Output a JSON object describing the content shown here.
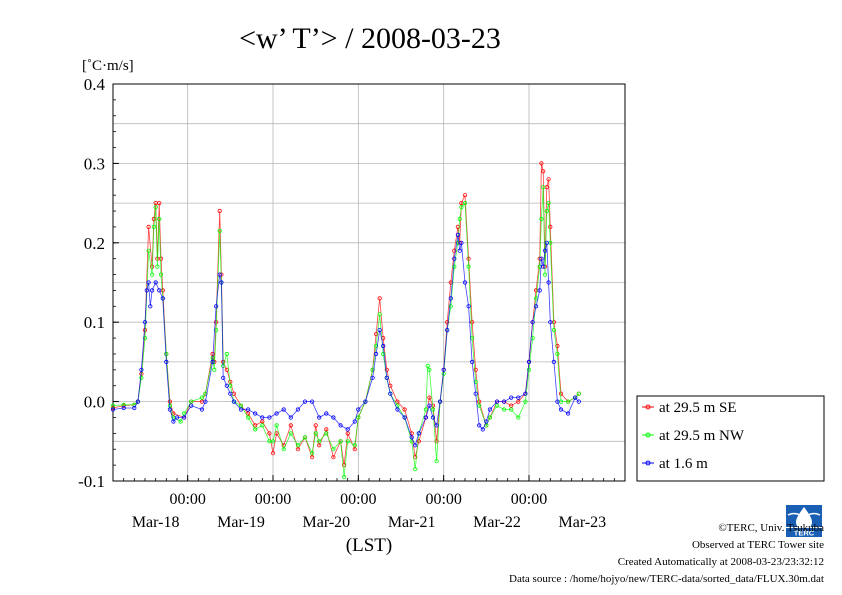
{
  "title": "<w’ T’> / 2008-03-23",
  "unit_label": "[˚C·m/s]",
  "x_axis_label": "(LST)",
  "chart_data": {
    "type": "line",
    "title": "<w’ T’> / 2008-03-23",
    "ylabel": "[˚C·m/s]",
    "xlabel": "(LST)",
    "ylim": [
      -0.1,
      0.4
    ],
    "xlim_hours": [
      0,
      144
    ],
    "y_ticks": [
      "0.4",
      "0.3",
      "0.2",
      "0.1",
      "0.0",
      "-0.1"
    ],
    "x_time_ticks": [
      {
        "hour": 21,
        "label": "00:00"
      },
      {
        "hour": 45,
        "label": "00:00"
      },
      {
        "hour": 69,
        "label": "00:00"
      },
      {
        "hour": 93,
        "label": "00:00"
      },
      {
        "hour": 117,
        "label": "00:00"
      }
    ],
    "x_date_labels": [
      {
        "hour": 12,
        "label": "Mar-18"
      },
      {
        "hour": 36,
        "label": "Mar-19"
      },
      {
        "hour": 60,
        "label": "Mar-20"
      },
      {
        "hour": 84,
        "label": "Mar-21"
      },
      {
        "hour": 108,
        "label": "Mar-22"
      },
      {
        "hour": 132,
        "label": "Mar-23"
      }
    ],
    "grid": true,
    "legend_position": "right",
    "series": [
      {
        "name": "at 29.5 m SE",
        "color": "#ff0000",
        "points": [
          [
            0,
            -0.008
          ],
          [
            3,
            -0.005
          ],
          [
            6,
            -0.004
          ],
          [
            7,
            0.0
          ],
          [
            8,
            0.035
          ],
          [
            9,
            0.09
          ],
          [
            10,
            0.22
          ],
          [
            11,
            0.17
          ],
          [
            11.5,
            0.23
          ],
          [
            12,
            0.25
          ],
          [
            12.5,
            0.18
          ],
          [
            13,
            0.25
          ],
          [
            13.5,
            0.18
          ],
          [
            14,
            0.14
          ],
          [
            15,
            0.06
          ],
          [
            16,
            0.0
          ],
          [
            17,
            -0.015
          ],
          [
            20,
            -0.02
          ],
          [
            22,
            0.0
          ],
          [
            25,
            0.0
          ],
          [
            26,
            0.01
          ],
          [
            28,
            0.06
          ],
          [
            28.5,
            0.05
          ],
          [
            29,
            0.1
          ],
          [
            30,
            0.24
          ],
          [
            30.5,
            0.16
          ],
          [
            31,
            0.05
          ],
          [
            32,
            0.04
          ],
          [
            33,
            0.025
          ],
          [
            34,
            0.01
          ],
          [
            36,
            -0.005
          ],
          [
            38,
            -0.015
          ],
          [
            40,
            -0.03
          ],
          [
            42,
            -0.025
          ],
          [
            44,
            -0.04
          ],
          [
            45,
            -0.065
          ],
          [
            46,
            -0.04
          ],
          [
            48,
            -0.055
          ],
          [
            50,
            -0.03
          ],
          [
            52,
            -0.06
          ],
          [
            54,
            -0.045
          ],
          [
            56,
            -0.07
          ],
          [
            57,
            -0.03
          ],
          [
            58,
            -0.055
          ],
          [
            60,
            -0.035
          ],
          [
            62,
            -0.07
          ],
          [
            64,
            -0.05
          ],
          [
            65,
            -0.08
          ],
          [
            66,
            -0.04
          ],
          [
            68,
            -0.06
          ],
          [
            69,
            -0.02
          ],
          [
            71,
            0.0
          ],
          [
            73,
            0.04
          ],
          [
            74,
            0.085
          ],
          [
            75,
            0.13
          ],
          [
            76,
            0.08
          ],
          [
            77,
            0.04
          ],
          [
            78,
            0.02
          ],
          [
            80,
            0.0
          ],
          [
            82,
            -0.01
          ],
          [
            84,
            -0.04
          ],
          [
            85,
            -0.07
          ],
          [
            86,
            -0.05
          ],
          [
            88,
            -0.02
          ],
          [
            89,
            0.005
          ],
          [
            90,
            -0.005
          ],
          [
            91,
            -0.05
          ],
          [
            92,
            0.0
          ],
          [
            93,
            0.04
          ],
          [
            94,
            0.1
          ],
          [
            95,
            0.15
          ],
          [
            96,
            0.19
          ],
          [
            97,
            0.22
          ],
          [
            97.5,
            0.2
          ],
          [
            98,
            0.25
          ],
          [
            99,
            0.26
          ],
          [
            100,
            0.18
          ],
          [
            101,
            0.1
          ],
          [
            102,
            0.04
          ],
          [
            103,
            0.0
          ],
          [
            105,
            -0.03
          ],
          [
            106,
            -0.02
          ],
          [
            108,
            0.0
          ],
          [
            110,
            0.0
          ],
          [
            112,
            -0.005
          ],
          [
            114,
            0.0
          ],
          [
            116,
            0.01
          ],
          [
            117,
            0.05
          ],
          [
            118,
            0.1
          ],
          [
            119,
            0.14
          ],
          [
            120,
            0.18
          ],
          [
            120.5,
            0.3
          ],
          [
            121,
            0.29
          ],
          [
            121.5,
            0.17
          ],
          [
            122,
            0.27
          ],
          [
            122.5,
            0.28
          ],
          [
            123,
            0.22
          ],
          [
            124,
            0.1
          ],
          [
            125,
            0.07
          ],
          [
            126,
            0.01
          ],
          [
            128,
            0.0
          ],
          [
            130,
            0.005
          ],
          [
            131,
            0.01
          ]
        ]
      },
      {
        "name": "at 29.5 m NW",
        "color": "#00ff00",
        "points": [
          [
            0,
            -0.005
          ],
          [
            3,
            -0.004
          ],
          [
            6,
            -0.004
          ],
          [
            7,
            0.0
          ],
          [
            8,
            0.03
          ],
          [
            9,
            0.08
          ],
          [
            10,
            0.19
          ],
          [
            11,
            0.16
          ],
          [
            11.5,
            0.22
          ],
          [
            12,
            0.245
          ],
          [
            12.5,
            0.17
          ],
          [
            13,
            0.23
          ],
          [
            13.5,
            0.16
          ],
          [
            14,
            0.13
          ],
          [
            15,
            0.06
          ],
          [
            16,
            -0.005
          ],
          [
            17,
            -0.02
          ],
          [
            19,
            -0.025
          ],
          [
            20,
            -0.015
          ],
          [
            22,
            0.0
          ],
          [
            25,
            0.005
          ],
          [
            26,
            0.01
          ],
          [
            28,
            0.055
          ],
          [
            28.5,
            0.04
          ],
          [
            29,
            0.09
          ],
          [
            30,
            0.215
          ],
          [
            30.5,
            0.15
          ],
          [
            31,
            0.045
          ],
          [
            32,
            0.06
          ],
          [
            33,
            0.02
          ],
          [
            34,
            0.0
          ],
          [
            36,
            -0.005
          ],
          [
            38,
            -0.02
          ],
          [
            40,
            -0.035
          ],
          [
            42,
            -0.03
          ],
          [
            44,
            -0.05
          ],
          [
            45,
            -0.05
          ],
          [
            46,
            -0.03
          ],
          [
            48,
            -0.06
          ],
          [
            50,
            -0.04
          ],
          [
            52,
            -0.055
          ],
          [
            54,
            -0.045
          ],
          [
            56,
            -0.065
          ],
          [
            57,
            -0.04
          ],
          [
            58,
            -0.05
          ],
          [
            60,
            -0.04
          ],
          [
            62,
            -0.06
          ],
          [
            64,
            -0.05
          ],
          [
            65,
            -0.095
          ],
          [
            66,
            -0.05
          ],
          [
            68,
            -0.055
          ],
          [
            69,
            -0.02
          ],
          [
            71,
            0.0
          ],
          [
            73,
            0.04
          ],
          [
            74,
            0.07
          ],
          [
            75,
            0.11
          ],
          [
            76,
            0.06
          ],
          [
            77,
            0.03
          ],
          [
            78,
            0.01
          ],
          [
            80,
            -0.005
          ],
          [
            82,
            -0.02
          ],
          [
            84,
            -0.05
          ],
          [
            85,
            -0.085
          ],
          [
            86,
            -0.04
          ],
          [
            88,
            -0.01
          ],
          [
            88.5,
            0.045
          ],
          [
            89,
            0.04
          ],
          [
            90,
            -0.01
          ],
          [
            91,
            -0.075
          ],
          [
            92,
            0.0
          ],
          [
            93,
            0.035
          ],
          [
            94,
            0.09
          ],
          [
            95,
            0.12
          ],
          [
            96,
            0.17
          ],
          [
            97,
            0.2
          ],
          [
            97.5,
            0.23
          ],
          [
            98,
            0.245
          ],
          [
            99,
            0.25
          ],
          [
            100,
            0.17
          ],
          [
            101,
            0.08
          ],
          [
            102,
            0.025
          ],
          [
            103,
            -0.005
          ],
          [
            105,
            -0.03
          ],
          [
            106,
            -0.02
          ],
          [
            108,
            -0.005
          ],
          [
            110,
            -0.01
          ],
          [
            112,
            -0.01
          ],
          [
            114,
            -0.02
          ],
          [
            116,
            0.0
          ],
          [
            117,
            0.04
          ],
          [
            118,
            0.08
          ],
          [
            119,
            0.13
          ],
          [
            120,
            0.17
          ],
          [
            120.5,
            0.23
          ],
          [
            121,
            0.27
          ],
          [
            121.5,
            0.16
          ],
          [
            122,
            0.24
          ],
          [
            122.5,
            0.25
          ],
          [
            123,
            0.2
          ],
          [
            124,
            0.09
          ],
          [
            125,
            0.06
          ],
          [
            126,
            0.0
          ],
          [
            128,
            0.0
          ],
          [
            130,
            0.005
          ],
          [
            131,
            0.01
          ]
        ]
      },
      {
        "name": "at 1.6 m",
        "color": "#0000ff",
        "points": [
          [
            0,
            -0.01
          ],
          [
            3,
            -0.008
          ],
          [
            6,
            -0.008
          ],
          [
            7,
            0.0
          ],
          [
            8,
            0.04
          ],
          [
            9,
            0.1
          ],
          [
            9.5,
            0.14
          ],
          [
            10,
            0.15
          ],
          [
            10.5,
            0.12
          ],
          [
            11,
            0.14
          ],
          [
            12,
            0.15
          ],
          [
            13,
            0.14
          ],
          [
            14,
            0.13
          ],
          [
            15,
            0.05
          ],
          [
            16,
            -0.01
          ],
          [
            17,
            -0.025
          ],
          [
            18,
            -0.02
          ],
          [
            20,
            -0.02
          ],
          [
            22,
            -0.005
          ],
          [
            25,
            -0.01
          ],
          [
            26,
            0.0
          ],
          [
            28,
            0.05
          ],
          [
            29,
            0.12
          ],
          [
            30,
            0.16
          ],
          [
            30.5,
            0.15
          ],
          [
            31,
            0.03
          ],
          [
            32,
            0.02
          ],
          [
            33,
            0.01
          ],
          [
            34,
            0.0
          ],
          [
            36,
            -0.01
          ],
          [
            38,
            -0.01
          ],
          [
            40,
            -0.015
          ],
          [
            42,
            -0.02
          ],
          [
            44,
            -0.02
          ],
          [
            46,
            -0.015
          ],
          [
            48,
            -0.01
          ],
          [
            50,
            -0.02
          ],
          [
            52,
            -0.01
          ],
          [
            54,
            0.0
          ],
          [
            56,
            0.0
          ],
          [
            58,
            -0.02
          ],
          [
            60,
            -0.015
          ],
          [
            62,
            -0.02
          ],
          [
            64,
            -0.03
          ],
          [
            66,
            -0.035
          ],
          [
            68,
            -0.025
          ],
          [
            69,
            -0.01
          ],
          [
            71,
            0.0
          ],
          [
            73,
            0.03
          ],
          [
            74,
            0.06
          ],
          [
            75,
            0.09
          ],
          [
            76,
            0.07
          ],
          [
            77,
            0.03
          ],
          [
            78,
            0.01
          ],
          [
            80,
            -0.01
          ],
          [
            82,
            -0.02
          ],
          [
            84,
            -0.045
          ],
          [
            85,
            -0.055
          ],
          [
            86,
            -0.04
          ],
          [
            88,
            -0.02
          ],
          [
            89,
            -0.005
          ],
          [
            90,
            -0.02
          ],
          [
            91,
            -0.03
          ],
          [
            92,
            0.0
          ],
          [
            93,
            0.04
          ],
          [
            94,
            0.09
          ],
          [
            95,
            0.13
          ],
          [
            96,
            0.18
          ],
          [
            97,
            0.21
          ],
          [
            97.5,
            0.19
          ],
          [
            98,
            0.2
          ],
          [
            99,
            0.15
          ],
          [
            100,
            0.12
          ],
          [
            101,
            0.05
          ],
          [
            102,
            0.01
          ],
          [
            103,
            -0.03
          ],
          [
            104,
            -0.035
          ],
          [
            105,
            -0.025
          ],
          [
            106,
            -0.01
          ],
          [
            108,
            0.0
          ],
          [
            110,
            0.0
          ],
          [
            112,
            0.005
          ],
          [
            114,
            0.005
          ],
          [
            116,
            0.01
          ],
          [
            117,
            0.05
          ],
          [
            118,
            0.1
          ],
          [
            119,
            0.12
          ],
          [
            120,
            0.14
          ],
          [
            120.5,
            0.18
          ],
          [
            121,
            0.17
          ],
          [
            121.5,
            0.19
          ],
          [
            122,
            0.2
          ],
          [
            122.5,
            0.15
          ],
          [
            123,
            0.1
          ],
          [
            124,
            0.05
          ],
          [
            125,
            0.0
          ],
          [
            126,
            -0.01
          ],
          [
            128,
            -0.015
          ],
          [
            130,
            0.005
          ],
          [
            131,
            0.0
          ]
        ]
      }
    ]
  },
  "footer": {
    "copyright": "©TERC, Univ. Tsukuba",
    "observed": "Observed at TERC Tower site",
    "created": "Created Automatically at 2008-03-23/23:32:12",
    "source": "Data source : /home/hojyo/new/TERC-data/sorted_data/FLUX.30m.dat"
  },
  "logo_icon": "terc-logo-icon",
  "logo_text": "TERC"
}
